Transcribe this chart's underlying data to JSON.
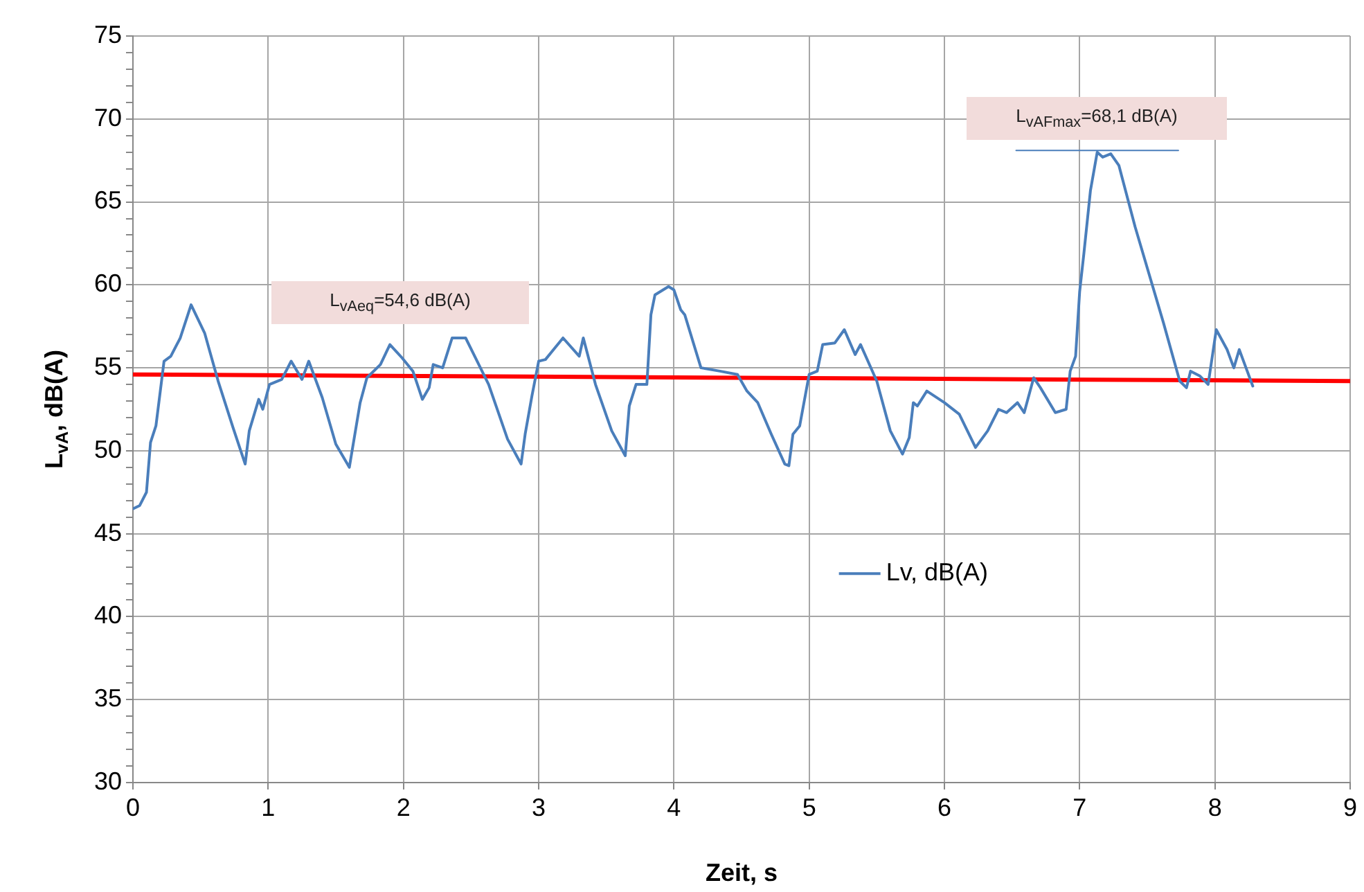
{
  "chart_data": {
    "type": "line",
    "xlabel": "Zeit, s",
    "ylabel": "L$_{vA}$, dB(A)",
    "xlim": [
      0,
      9
    ],
    "xticks": [
      0,
      1,
      2,
      3,
      4,
      5,
      6,
      7,
      8,
      9
    ],
    "ylim": [
      30,
      75
    ],
    "yticks": [
      30,
      {
        "value": 31,
        "label": null
      },
      {
        "value": 32,
        "label": null
      },
      {
        "value": 33,
        "label": null
      },
      {
        "value": 34,
        "label": null
      },
      35,
      {
        "value": 36,
        "label": null
      },
      {
        "value": 37,
        "label": null
      },
      {
        "value": 38,
        "label": null
      },
      {
        "value": 39,
        "label": null
      },
      40,
      {
        "value": 41,
        "label": null
      },
      {
        "value": 42,
        "label": null
      },
      {
        "value": 43,
        "label": null
      },
      {
        "value": 44,
        "label": null
      },
      45,
      {
        "value": 46,
        "label": null
      },
      {
        "value": 47,
        "label": null
      },
      {
        "value": 48,
        "label": null
      },
      {
        "value": 49,
        "label": null
      },
      50,
      {
        "value": 51,
        "label": null
      },
      {
        "value": 52,
        "label": null
      },
      {
        "value": 53,
        "label": null
      },
      {
        "value": 54,
        "label": null
      },
      55,
      {
        "value": 56,
        "label": null
      },
      {
        "value": 57,
        "label": null
      },
      {
        "value": 58,
        "label": null
      },
      {
        "value": 59,
        "label": null
      },
      60,
      {
        "value": 61,
        "label": null
      },
      {
        "value": 62,
        "label": null
      },
      {
        "value": 63,
        "label": null
      },
      {
        "value": 64,
        "label": null
      },
      65,
      {
        "value": 66,
        "label": null
      },
      {
        "value": 67,
        "label": null
      },
      {
        "value": 68,
        "label": null
      },
      {
        "value": 69,
        "label": null
      },
      70,
      {
        "value": 71,
        "label": null
      },
      {
        "value": 72,
        "label": null
      },
      {
        "value": 73,
        "label": null
      },
      {
        "value": 74,
        "label": null
      },
      75
    ],
    "grid": true,
    "legend": "right",
    "marker": "none",
    "line_style": "solid",
    "series": [
      {
        "name": "Lv, dB(A)",
        "color": "#4a7ebb",
        "x": [
          0,
          0.05,
          0.1,
          0.13,
          0.17,
          0.23,
          0.28,
          0.35,
          0.43,
          0.53,
          0.63,
          0.74,
          0.83,
          0.86,
          0.93,
          0.96,
          1.01,
          1.1,
          1.17,
          1.25,
          1.3,
          1.4,
          1.5,
          1.6,
          1.68,
          1.73,
          1.83,
          1.9,
          1.99,
          2.07,
          2.14,
          2.19,
          2.22,
          2.29,
          2.36,
          2.46,
          2.63,
          2.77,
          2.87,
          2.9,
          2.95,
          3.0,
          3.05,
          3.18,
          3.3,
          3.33,
          3.42,
          3.54,
          3.64,
          3.67,
          3.72,
          3.8,
          3.83,
          3.86,
          3.96,
          4.0,
          4.05,
          4.08,
          4.2,
          4.34,
          4.47,
          4.54,
          4.62,
          4.72,
          4.82,
          4.85,
          4.88,
          4.93,
          5.0,
          5.06,
          5.1,
          5.19,
          5.26,
          5.34,
          5.38,
          5.5,
          5.6,
          5.69,
          5.74,
          5.77,
          5.8,
          5.87,
          6.0,
          6.11,
          6.23,
          6.32,
          6.4,
          6.46,
          6.54,
          6.59,
          6.66,
          6.71,
          6.82,
          6.9,
          6.93,
          6.97,
          7.0,
          7.03,
          7.08,
          7.13,
          7.17,
          7.23,
          7.29,
          7.41,
          7.62,
          7.74,
          7.79,
          7.82,
          7.89,
          7.95,
          8.01,
          8.09,
          8.14,
          8.18,
          8.23,
          8.28
        ],
        "values": [
          46.5,
          46.7,
          47.5,
          50.5,
          51.5,
          55.4,
          55.7,
          56.8,
          58.8,
          57.1,
          54.2,
          51.4,
          49.2,
          51.2,
          53.1,
          52.5,
          54,
          54.3,
          55.4,
          54.3,
          55.4,
          53.2,
          50.4,
          49,
          52.9,
          54.4,
          55.2,
          56.4,
          55.6,
          54.8,
          53.1,
          53.8,
          55.2,
          55,
          56.8,
          56.8,
          54,
          50.7,
          49.2,
          51,
          53.3,
          55.4,
          55.5,
          56.8,
          55.7,
          56.8,
          54,
          51.2,
          49.7,
          52.7,
          54,
          54,
          58.2,
          59.4,
          59.9,
          59.7,
          58.5,
          58.2,
          55,
          54.8,
          54.6,
          53.6,
          52.9,
          51,
          49.2,
          49.1,
          51,
          51.5,
          54.6,
          54.8,
          56.4,
          56.5,
          57.3,
          55.8,
          56.4,
          54.2,
          51.2,
          49.8,
          50.8,
          52.9,
          52.7,
          53.6,
          52.9,
          52.2,
          50.2,
          51.2,
          52.5,
          52.3,
          52.9,
          52.3,
          54.4,
          53.8,
          52.3,
          52.5,
          54.8,
          55.7,
          59.6,
          61.8,
          65.7,
          68,
          67.7,
          67.9,
          67.2,
          63.5,
          57.7,
          54.2,
          53.8,
          54.8,
          54.5,
          54,
          57.3,
          56.1,
          55,
          56.1,
          55,
          53.9
        ]
      },
      {
        "color": "#ff0000",
        "x": [
          0,
          9
        ],
        "values": [
          54.6,
          54.2
        ]
      },
      {
        "color": "#4a7ebb",
        "x": [
          6.53,
          7.73
        ],
        "values": [
          68.1,
          68.1
        ]
      }
    ],
    "annotations": [
      "L$_{vAeq}$=54,6 dB(A)",
      "L$_{vAFmax}$=68,1 dB(A)"
    ]
  }
}
